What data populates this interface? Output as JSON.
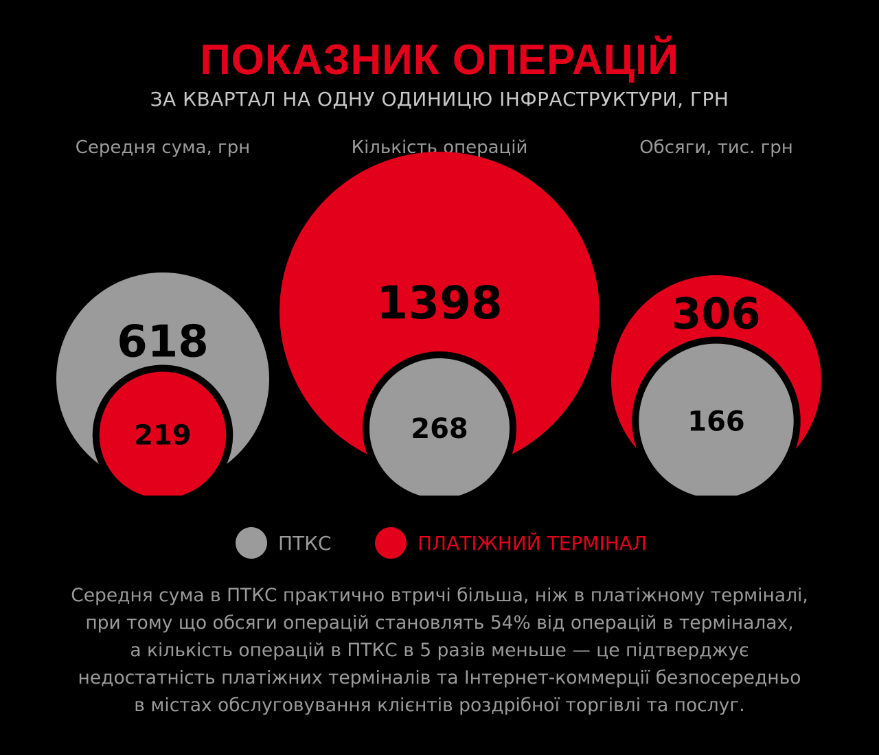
{
  "title": "ПОКАЗНИК ОПЕРАЦІЙ",
  "subtitle": "ЗА КВАРТАЛ НА ОДНУ ОДИНИЦЮ ІНФРАСТРУКТУРИ, ГРН",
  "colors": {
    "ptks": "#9b9b9b",
    "terminal": "#e2001a",
    "background": "#000000",
    "title": "#e2001a"
  },
  "chart_data": {
    "type": "bubble-comparison",
    "series_names": [
      "ПТКС",
      "ПЛАТІЖНИЙ ТЕРМІНАЛ"
    ],
    "groups": [
      {
        "label": "Середня сума, грн",
        "ptks": 618,
        "terminal": 219
      },
      {
        "label": "Кількість операцій",
        "ptks": 268,
        "terminal": 1398
      },
      {
        "label": "Обсяги, тис. грн",
        "ptks": 166,
        "terminal": 306
      }
    ]
  },
  "legend": [
    {
      "label": "ПТКС",
      "color": "#9b9b9b"
    },
    {
      "label": "ПЛАТІЖНИЙ ТЕРМІНАЛ",
      "color": "#e2001a"
    }
  ],
  "note_lines": [
    "Середня сума в ПТКС практично втричі більша, ніж в платіжному терміналі,",
    "при тому що обсяги операцій становлять 54% від операцій в терміналах,",
    "а кількість операцій в ПТКС в 5 разів меньше — це підтверджує",
    "недостатність платіжних терміналів та Інтернет-коммерції безпосередньо",
    "в містах обслуговування клієнтів роздрібної торгівлі та послуг."
  ]
}
